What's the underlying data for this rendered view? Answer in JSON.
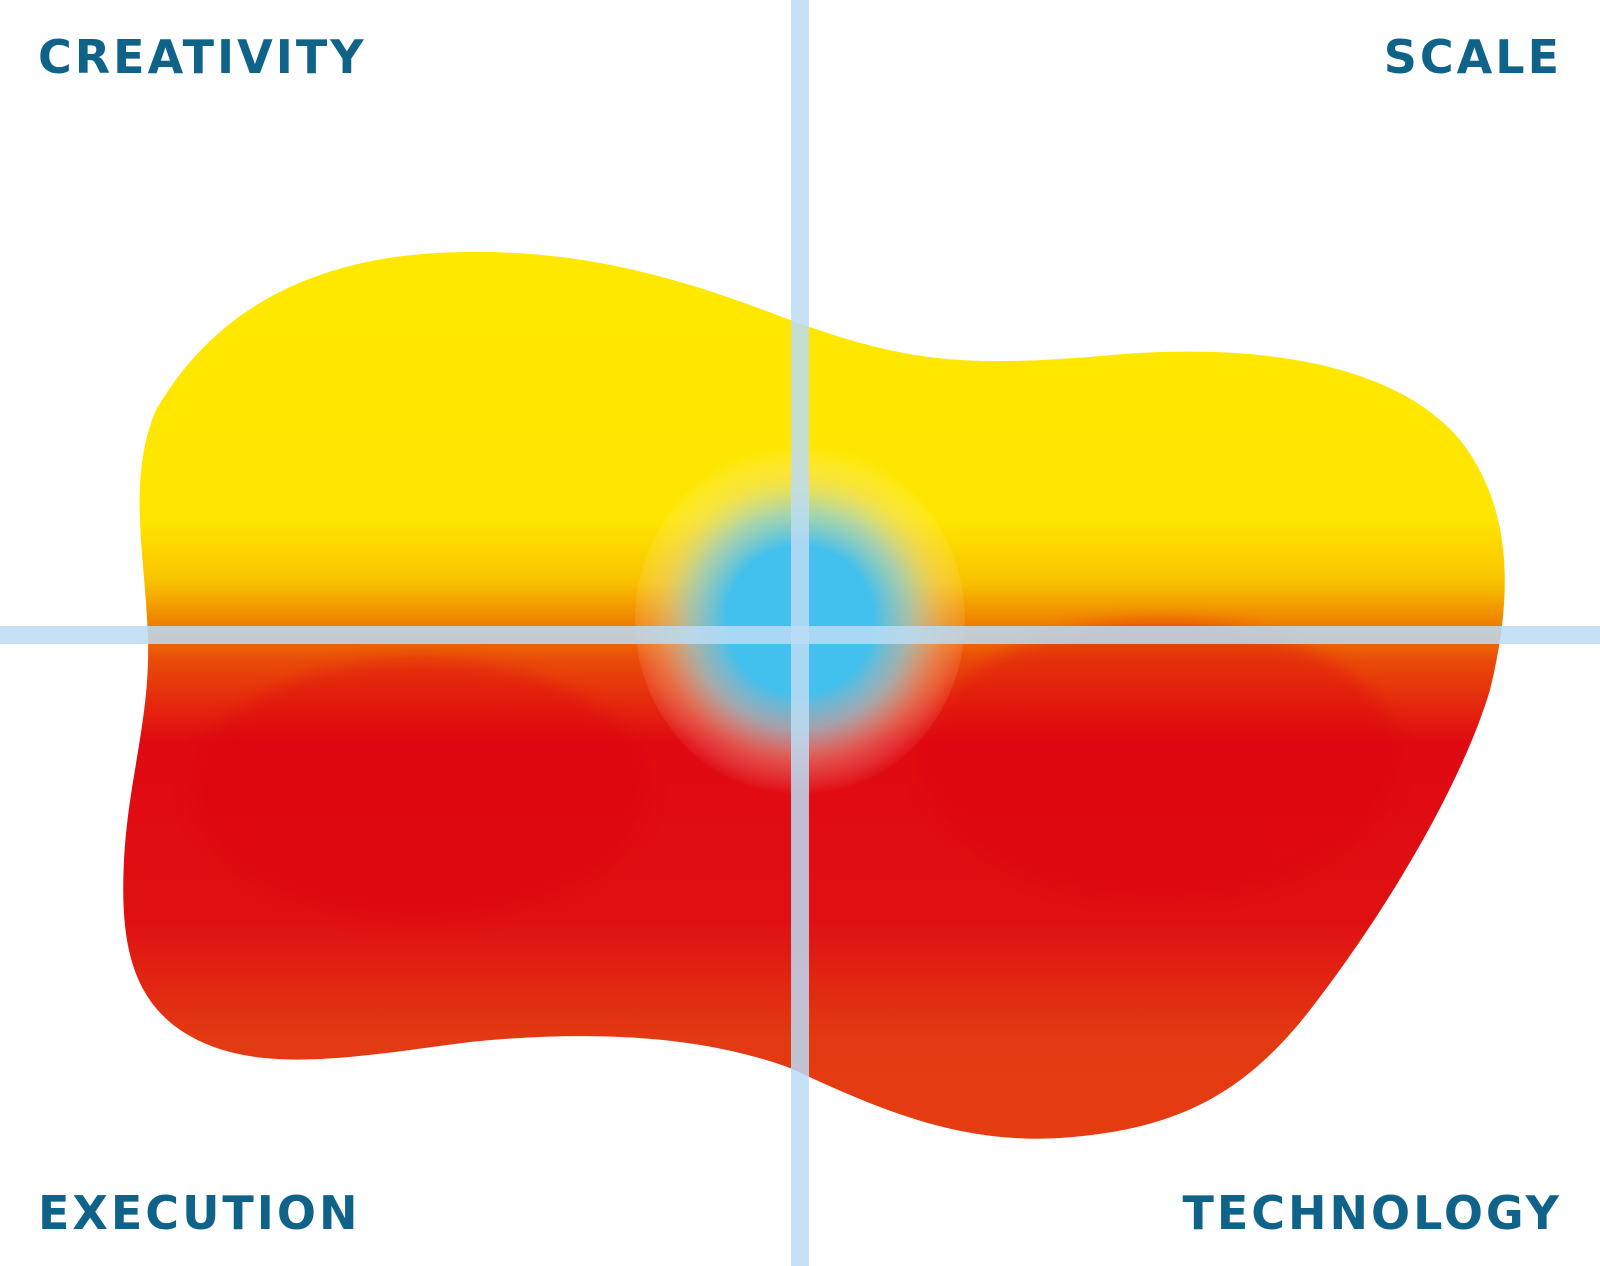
{
  "quadrants": {
    "top_left": "CREATIVITY",
    "top_right": "SCALE",
    "bottom_left": "EXECUTION",
    "bottom_right": "TECHNOLOGY"
  },
  "colors": {
    "label": "#0f6389",
    "axis": "#bcdcf5",
    "yellow": "#ffe800",
    "orange": "#f08a00",
    "red": "#e00a12",
    "red_orange": "#e23a12",
    "center_blue": "#42c0ee"
  },
  "icons": {
    "blob": "heatmap-blob",
    "center": "center-glow"
  }
}
